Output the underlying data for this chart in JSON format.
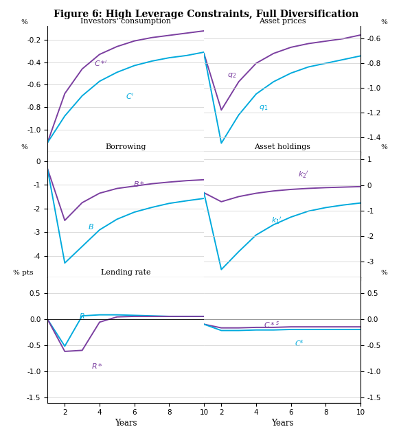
{
  "title": "Figure 6: High Leverage Constraints, Full Diversification",
  "purple_color": "#7B3FA0",
  "cyan_color": "#00AADD",
  "years": [
    1,
    2,
    3,
    4,
    5,
    6,
    7,
    8,
    9,
    10
  ],
  "panel1_ylim": [
    -1.2,
    -0.08
  ],
  "panel1_yticks": [
    -1.0,
    -0.8,
    -0.6,
    -0.4,
    -0.2
  ],
  "panel1_C_star": [
    -1.12,
    -0.68,
    -0.46,
    -0.33,
    -0.26,
    -0.21,
    -0.18,
    -0.16,
    -0.14,
    -0.12
  ],
  "panel1_C": [
    -1.12,
    -0.88,
    -0.7,
    -0.57,
    -0.49,
    -0.43,
    -0.39,
    -0.36,
    -0.34,
    -0.31
  ],
  "panel2_ylim": [
    -1.52,
    -0.5
  ],
  "panel2_yticks": [
    -1.4,
    -1.2,
    -1.0,
    -0.8,
    -0.6
  ],
  "panel2_q2": [
    -0.72,
    -1.18,
    -0.95,
    -0.8,
    -0.72,
    -0.67,
    -0.64,
    -0.62,
    -0.6,
    -0.57
  ],
  "panel2_q1": [
    -0.72,
    -1.45,
    -1.22,
    -1.05,
    -0.95,
    -0.88,
    -0.83,
    -0.8,
    -0.77,
    -0.74
  ],
  "panel3_ylim": [
    -4.9,
    0.4
  ],
  "panel3_yticks": [
    0,
    -1,
    -2,
    -3,
    -4
  ],
  "panel3_B_star": [
    -0.3,
    -2.5,
    -1.75,
    -1.35,
    -1.15,
    -1.05,
    -0.95,
    -0.88,
    -0.82,
    -0.78
  ],
  "panel3_B": [
    -0.3,
    -4.3,
    -3.6,
    -2.9,
    -2.45,
    -2.15,
    -1.95,
    -1.78,
    -1.67,
    -1.57
  ],
  "panel4_ylim": [
    -3.6,
    1.3
  ],
  "panel4_yticks": [
    1,
    0,
    -1,
    -2,
    -3
  ],
  "panel4_k2": [
    -0.3,
    -0.65,
    -0.45,
    -0.32,
    -0.23,
    -0.17,
    -0.13,
    -0.1,
    -0.08,
    -0.06
  ],
  "panel4_k1": [
    -0.3,
    -3.3,
    -2.6,
    -1.95,
    -1.55,
    -1.25,
    -1.02,
    -0.88,
    -0.78,
    -0.7
  ],
  "panel5_ylim": [
    -1.6,
    0.8
  ],
  "panel5_yticks": [
    0.5,
    0.0,
    -0.5,
    -1.0,
    -1.5
  ],
  "panel5_R": [
    0.0,
    -0.52,
    0.06,
    0.08,
    0.08,
    0.07,
    0.06,
    0.05,
    0.05,
    0.05
  ],
  "panel5_R_star": [
    0.0,
    -0.62,
    -0.6,
    -0.06,
    0.04,
    0.05,
    0.05,
    0.05,
    0.05,
    0.05
  ],
  "panel6_ylim": [
    -1.6,
    0.8
  ],
  "panel6_yticks": [
    0.5,
    0.0,
    -0.5,
    -1.0,
    -1.5
  ],
  "panel6_Cs_star": [
    -0.1,
    -0.17,
    -0.17,
    -0.16,
    -0.16,
    -0.15,
    -0.15,
    -0.15,
    -0.15,
    -0.15
  ],
  "panel6_Cs": [
    -0.1,
    -0.22,
    -0.22,
    -0.21,
    -0.21,
    -0.2,
    -0.2,
    -0.2,
    -0.2,
    -0.2
  ]
}
